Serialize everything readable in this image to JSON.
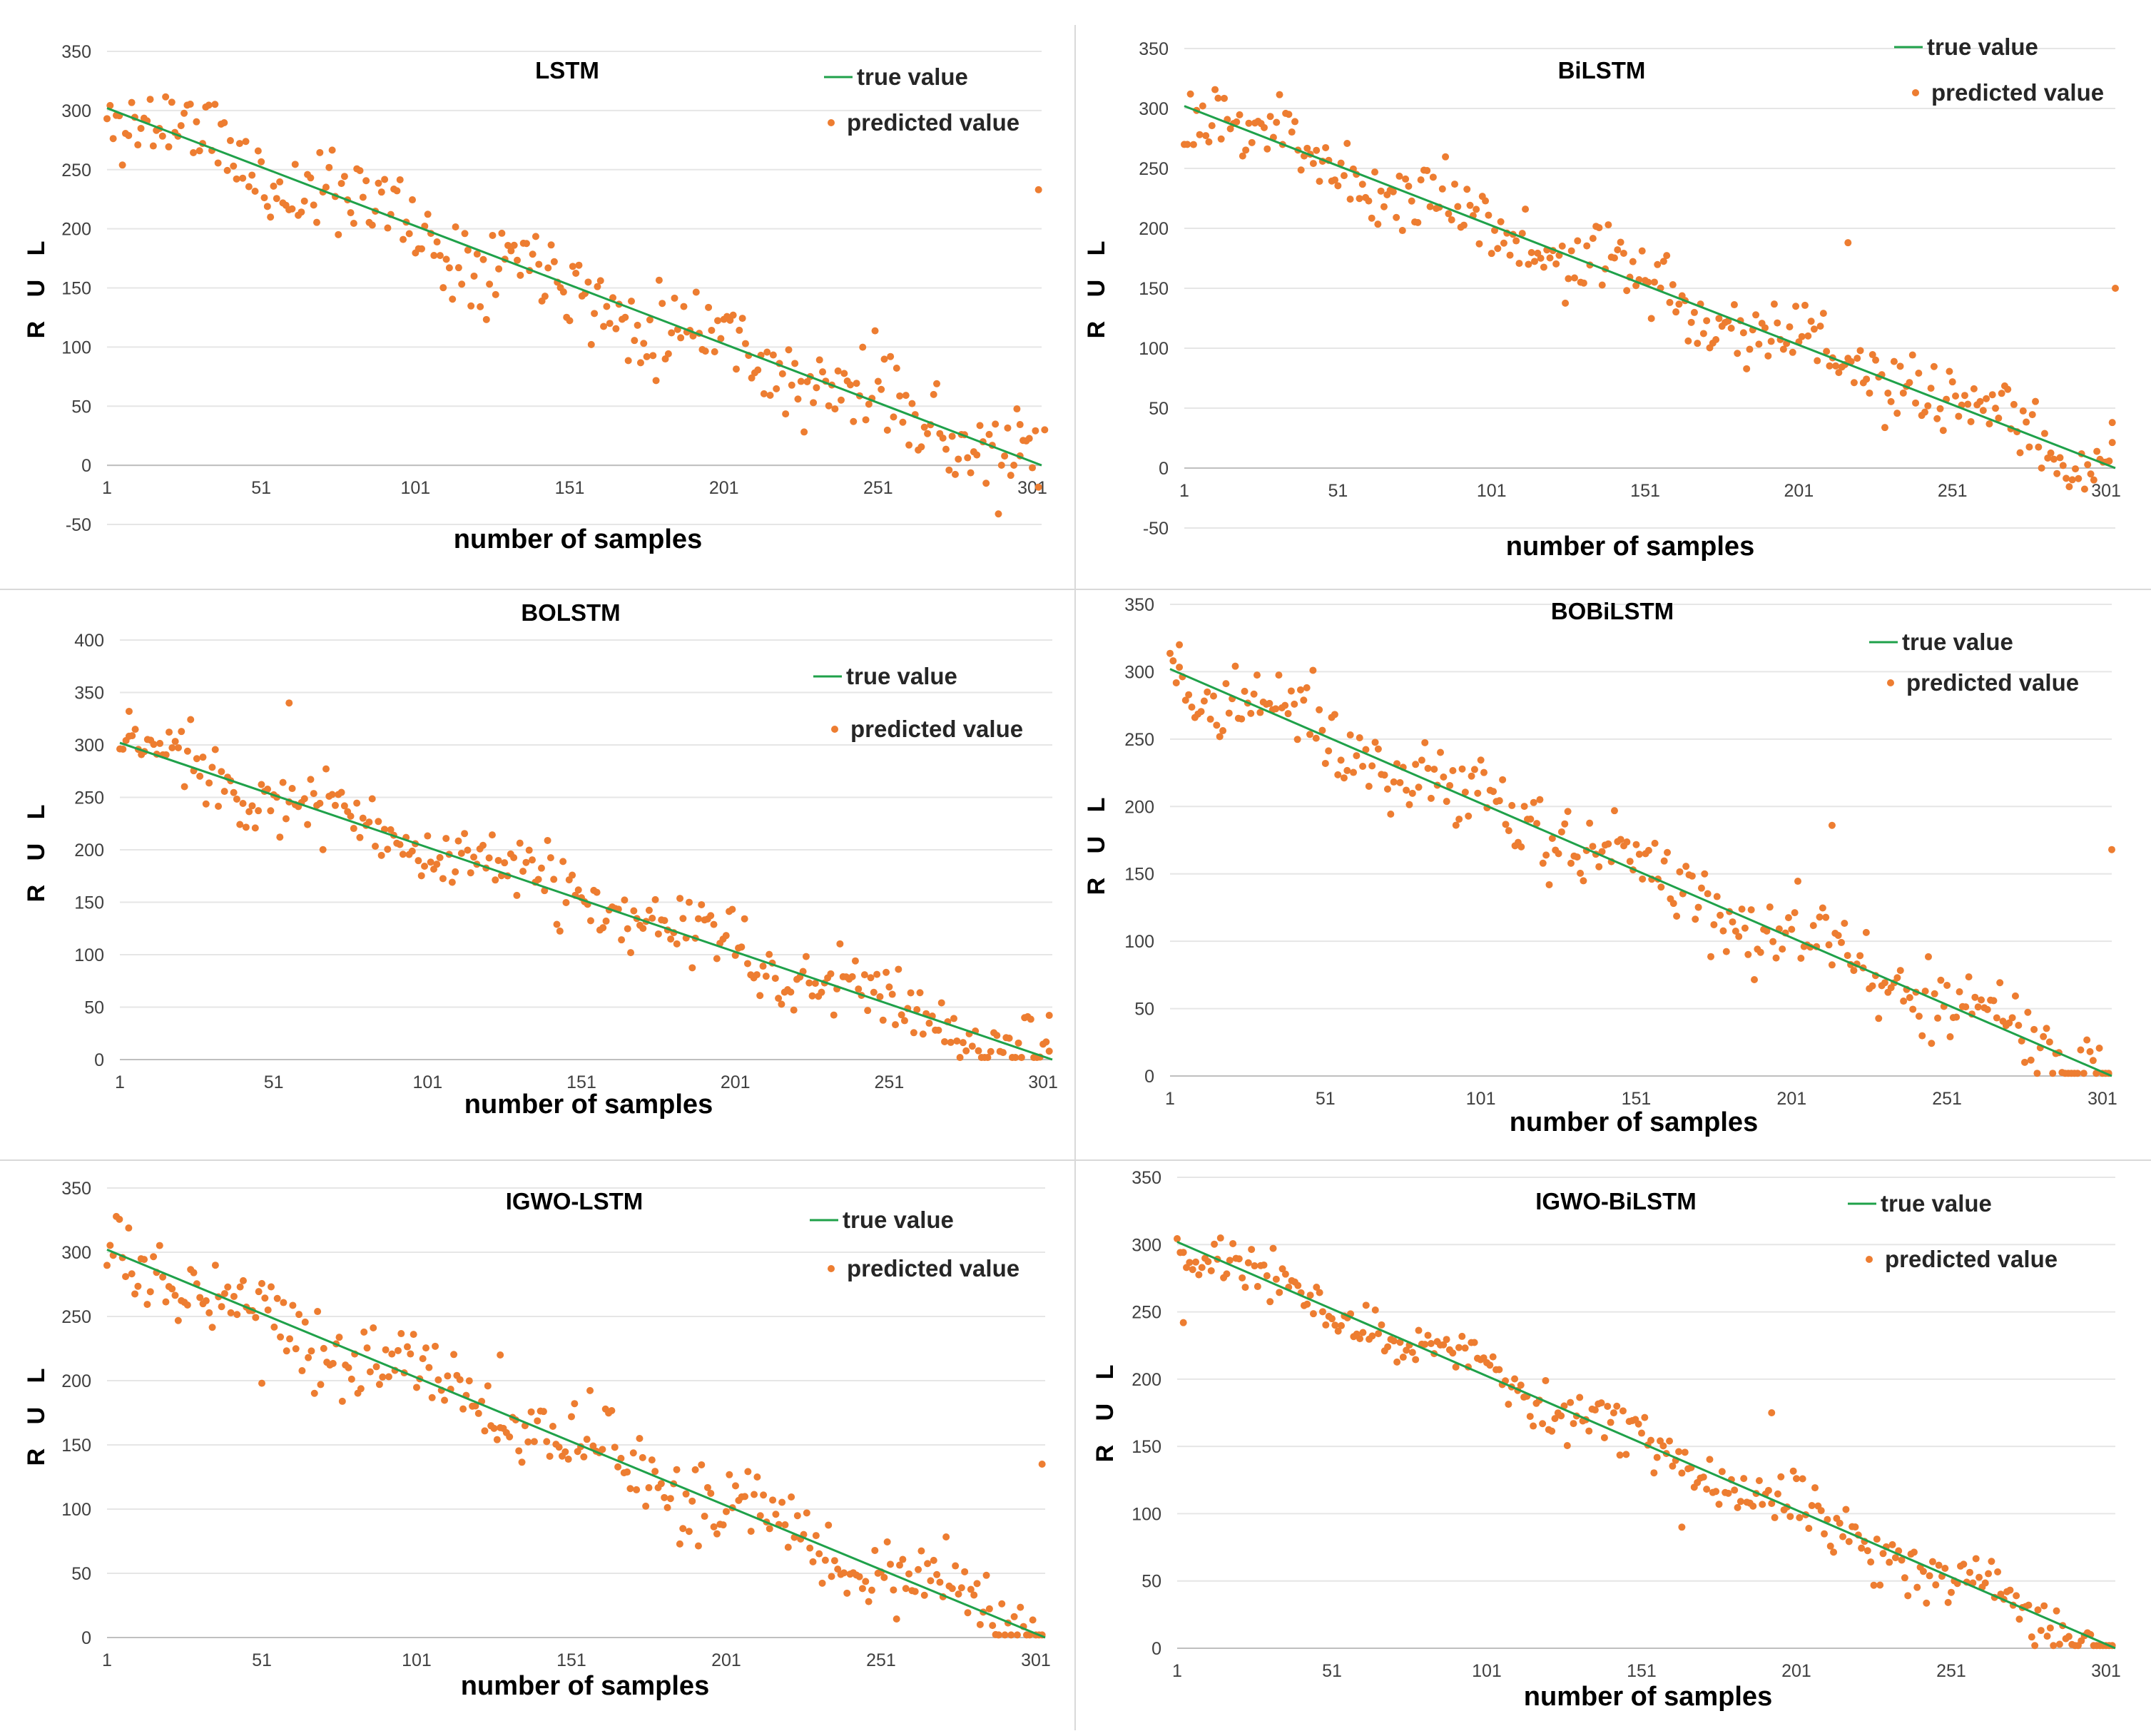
{
  "colors": {
    "true_line": "#1fa14a",
    "predicted_point": "#ed7d31",
    "gridline": "#e6e6e6",
    "divider": "#d9d9d9"
  },
  "chart_data": [
    {
      "type": "scatter",
      "title": "LSTM",
      "xlabel": "number of samples",
      "ylabel": "R U L",
      "xticks": [
        "1",
        "51",
        "101",
        "151",
        "201",
        "251",
        "301"
      ],
      "yticks": [
        "-50",
        "0",
        "50",
        "100",
        "150",
        "200",
        "250",
        "300",
        "350"
      ],
      "ylim": [
        -50,
        350
      ],
      "xlim": [
        1,
        304
      ],
      "legend": {
        "true": "true value",
        "pred": "predicted value"
      },
      "true_value": {
        "x": [
          1,
          304
        ],
        "y": [
          302,
          0
        ]
      },
      "predicted_value": {
        "seed": 11,
        "noise": 18,
        "outliers": [
          [
            303,
            233
          ],
          [
            305,
            30
          ],
          [
            297,
            8
          ]
        ]
      }
    },
    {
      "type": "scatter",
      "title": "BiLSTM",
      "xlabel": "number of samples",
      "ylabel": "R U L",
      "xticks": [
        "1",
        "51",
        "101",
        "151",
        "201",
        "251",
        "301"
      ],
      "yticks": [
        "-50",
        "0",
        "50",
        "100",
        "150",
        "200",
        "250",
        "300",
        "350"
      ],
      "ylim": [
        -50,
        350
      ],
      "xlim": [
        1,
        304
      ],
      "legend": {
        "true": "true value",
        "pred": "predicted value"
      },
      "true_value": {
        "x": [
          1,
          304
        ],
        "y": [
          302,
          0
        ]
      },
      "predicted_value": {
        "seed": 23,
        "noise": 15,
        "outliers": [
          [
            304,
            150
          ],
          [
            303,
            38
          ],
          [
            217,
            188
          ]
        ]
      }
    },
    {
      "type": "scatter",
      "title": "BOLSTM",
      "xlabel": "number of samples",
      "ylabel": "R U L",
      "xticks": [
        "1",
        "51",
        "101",
        "151",
        "201",
        "251",
        "301"
      ],
      "yticks": [
        "0",
        "50",
        "100",
        "150",
        "200",
        "250",
        "300",
        "350",
        "400"
      ],
      "ylim": [
        0,
        400
      ],
      "xlim": [
        1,
        304
      ],
      "legend": {
        "true": "true value",
        "pred": "predicted value"
      },
      "true_value": {
        "x": [
          1,
          304
        ],
        "y": [
          302,
          0
        ]
      },
      "predicted_value": {
        "seed": 37,
        "noise": 16,
        "outliers": [
          [
            56,
            340
          ],
          [
            4,
            332
          ],
          [
            303,
            8
          ]
        ]
      }
    },
    {
      "type": "scatter",
      "title": "BOBiLSTM",
      "xlabel": "number of samples",
      "ylabel": "R U L",
      "xticks": [
        "1",
        "51",
        "101",
        "151",
        "201",
        "251",
        "301"
      ],
      "yticks": [
        "0",
        "50",
        "100",
        "150",
        "200",
        "250",
        "300",
        "350"
      ],
      "ylim": [
        0,
        350
      ],
      "xlim": [
        1,
        304
      ],
      "legend": {
        "true": "true value",
        "pred": "predicted value"
      },
      "true_value": {
        "x": [
          1,
          304
        ],
        "y": [
          302,
          0
        ]
      },
      "predicted_value": {
        "seed": 41,
        "noise": 15,
        "outliers": [
          [
            304,
            168
          ],
          [
            4,
            320
          ],
          [
            214,
            186
          ]
        ]
      }
    },
    {
      "type": "scatter",
      "title": "IGWO-LSTM",
      "xlabel": "number of samples",
      "ylabel": "R U L",
      "xticks": [
        "1",
        "51",
        "101",
        "151",
        "201",
        "251",
        "301"
      ],
      "yticks": [
        "0",
        "50",
        "100",
        "150",
        "200",
        "250",
        "300",
        "350"
      ],
      "ylim": [
        0,
        350
      ],
      "xlim": [
        1,
        304
      ],
      "legend": {
        "true": "true value",
        "pred": "predicted value"
      },
      "true_value": {
        "x": [
          1,
          304
        ],
        "y": [
          302,
          0
        ]
      },
      "predicted_value": {
        "seed": 53,
        "noise": 14,
        "outliers": [
          [
            303,
            135
          ],
          [
            128,
            220
          ],
          [
            51,
            198
          ]
        ]
      }
    },
    {
      "type": "scatter",
      "title": "IGWO-BiLSTM",
      "xlabel": "number of samples",
      "ylabel": "R U L",
      "xticks": [
        "1",
        "51",
        "101",
        "151",
        "201",
        "251",
        "301"
      ],
      "yticks": [
        "0",
        "50",
        "100",
        "150",
        "200",
        "250",
        "300",
        "350"
      ],
      "ylim": [
        0,
        350
      ],
      "xlim": [
        1,
        304
      ],
      "legend": {
        "true": "true value",
        "pred": "predicted value"
      },
      "true_value": {
        "x": [
          1,
          304
        ],
        "y": [
          302,
          0
        ]
      },
      "predicted_value": {
        "seed": 67,
        "noise": 10,
        "outliers": [
          [
            193,
            175
          ],
          [
            3,
            242
          ],
          [
            164,
            90
          ]
        ]
      }
    }
  ]
}
